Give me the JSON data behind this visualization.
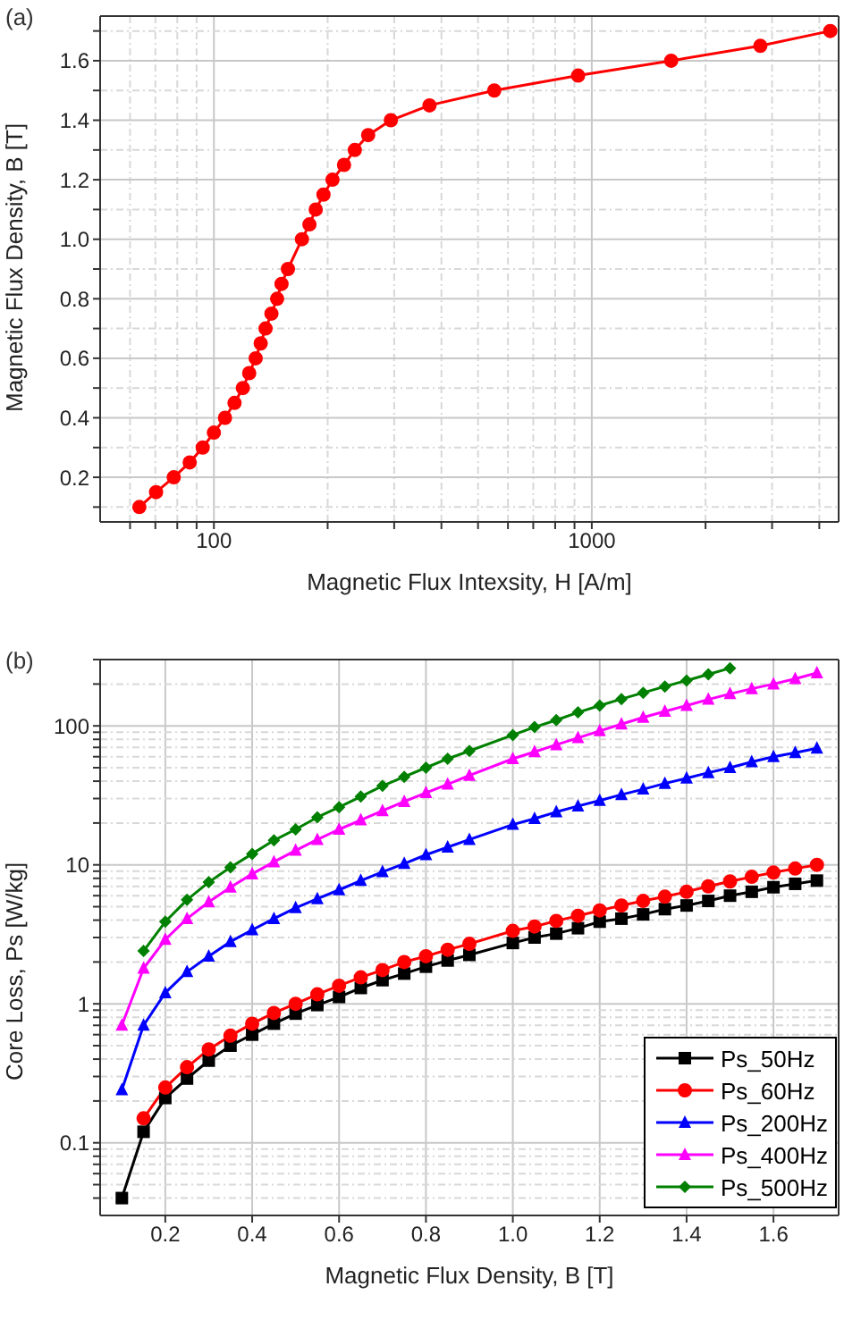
{
  "chart_data": [
    {
      "type": "line",
      "annotations": [
        "(a)"
      ],
      "xlabel": "Magnetic Flux Intexsity, H [A/m]",
      "ylabel": "Magnetic Flux Density, B [T]",
      "log": "x",
      "xlim": [
        50,
        4500
      ],
      "xticks": [
        {
          "value": 60,
          "label": null
        },
        {
          "value": 70,
          "label": null
        },
        {
          "value": 80,
          "label": null
        },
        {
          "value": 90,
          "label": null
        },
        100,
        {
          "value": 200,
          "label": null
        },
        {
          "value": 300,
          "label": null
        },
        {
          "value": 400,
          "label": null
        },
        {
          "value": 500,
          "label": null
        },
        {
          "value": 600,
          "label": null
        },
        {
          "value": 700,
          "label": null
        },
        {
          "value": 800,
          "label": null
        },
        {
          "value": 900,
          "label": null
        },
        1000,
        {
          "value": 2000,
          "label": null
        },
        {
          "value": 3000,
          "label": null
        },
        {
          "value": 4000,
          "label": null
        }
      ],
      "ylim": [
        0.05,
        1.75
      ],
      "yticks": [
        {
          "value": 0.1,
          "label": null
        },
        0.2,
        {
          "value": 0.3,
          "label": null
        },
        0.4,
        {
          "value": 0.5,
          "label": null
        },
        0.6,
        {
          "value": 0.7,
          "label": null
        },
        0.8,
        {
          "value": 0.9,
          "label": null
        },
        {
          "value": 1,
          "label": "1.0"
        },
        {
          "value": 1.1,
          "label": null
        },
        1.2,
        {
          "value": 1.3,
          "label": null
        },
        1.4,
        {
          "value": 1.5,
          "label": null
        },
        1.6,
        {
          "value": 1.7,
          "label": null
        }
      ],
      "grid": true,
      "marker": "circle",
      "series": [
        {
          "color": "#ff0000",
          "x": [
            63.5,
            70.3,
            78.3,
            86.3,
            93.4,
            100,
            107,
            113.4,
            119.3,
            124,
            129,
            133,
            137,
            142,
            147,
            151,
            157,
            171,
            179,
            186,
            195,
            206,
            221,
            236,
            256,
            294,
            372,
            552,
            920,
            1622,
            2793,
            4276
          ],
          "values": [
            0.1,
            0.15,
            0.2,
            0.25,
            0.3,
            0.35,
            0.4,
            0.45,
            0.5,
            0.55,
            0.6,
            0.65,
            0.7,
            0.75,
            0.8,
            0.85,
            0.9,
            1.0,
            1.05,
            1.1,
            1.15,
            1.2,
            1.25,
            1.3,
            1.35,
            1.4,
            1.45,
            1.5,
            1.55,
            1.6,
            1.65,
            1.7
          ]
        }
      ]
    },
    {
      "type": "line",
      "annotations": [
        "(b)"
      ],
      "xlabel": "Magnetic Flux Density, B [T]",
      "ylabel": "Core Loss, Ps [W/kg]",
      "log": "y",
      "xlim": [
        0.05,
        1.75
      ],
      "xticks": [
        0.2,
        0.4,
        0.6,
        0.8,
        {
          "value": 1,
          "label": "1.0"
        },
        1.2,
        1.4,
        1.6
      ],
      "ylim": [
        0.03,
        300
      ],
      "yticks": [
        {
          "value": 0.04,
          "label": null
        },
        {
          "value": 0.05,
          "label": null
        },
        {
          "value": 0.06,
          "label": null
        },
        {
          "value": 0.07,
          "label": null
        },
        {
          "value": 0.08,
          "label": null
        },
        {
          "value": 0.09,
          "label": null
        },
        0.1,
        {
          "value": 0.2,
          "label": null
        },
        {
          "value": 0.3,
          "label": null
        },
        {
          "value": 0.4,
          "label": null
        },
        {
          "value": 0.5,
          "label": null
        },
        {
          "value": 0.6,
          "label": null
        },
        {
          "value": 0.7,
          "label": null
        },
        {
          "value": 0.8,
          "label": null
        },
        {
          "value": 0.9,
          "label": null
        },
        1,
        {
          "value": 2,
          "label": null
        },
        {
          "value": 3,
          "label": null
        },
        {
          "value": 4,
          "label": null
        },
        {
          "value": 5,
          "label": null
        },
        {
          "value": 6,
          "label": null
        },
        {
          "value": 7,
          "label": null
        },
        {
          "value": 8,
          "label": null
        },
        {
          "value": 9,
          "label": null
        },
        10,
        {
          "value": 20,
          "label": null
        },
        {
          "value": 30,
          "label": null
        },
        {
          "value": 40,
          "label": null
        },
        {
          "value": 50,
          "label": null
        },
        {
          "value": 60,
          "label": null
        },
        {
          "value": 70,
          "label": null
        },
        {
          "value": 80,
          "label": null
        },
        {
          "value": 90,
          "label": null
        },
        100,
        {
          "value": 200,
          "label": null
        },
        {
          "value": 300,
          "label": null
        }
      ],
      "grid": true,
      "legend": "bottom right",
      "series": [
        {
          "name": "Ps_50Hz",
          "color": "#000000",
          "marker": "square",
          "x": [
            0.1,
            0.15,
            0.2,
            0.25,
            0.3,
            0.35,
            0.4,
            0.45,
            0.5,
            0.55,
            0.6,
            0.65,
            0.7,
            0.75,
            0.8,
            0.85,
            0.9,
            1.0,
            1.05,
            1.1,
            1.15,
            1.2,
            1.25,
            1.3,
            1.35,
            1.4,
            1.45,
            1.5,
            1.55,
            1.6,
            1.65,
            1.7
          ],
          "values": [
            0.04,
            0.12,
            0.21,
            0.29,
            0.39,
            0.5,
            0.6,
            0.72,
            0.85,
            0.98,
            1.12,
            1.3,
            1.48,
            1.65,
            1.85,
            2.05,
            2.25,
            2.74,
            3.0,
            3.2,
            3.5,
            3.9,
            4.1,
            4.4,
            4.8,
            5.1,
            5.5,
            6.0,
            6.4,
            6.9,
            7.3,
            7.7
          ]
        },
        {
          "name": "Ps_60Hz",
          "color": "#ff0000",
          "marker": "circle",
          "x": [
            0.15,
            0.2,
            0.25,
            0.3,
            0.35,
            0.4,
            0.45,
            0.5,
            0.55,
            0.6,
            0.65,
            0.7,
            0.75,
            0.8,
            0.85,
            0.9,
            1.0,
            1.05,
            1.1,
            1.15,
            1.2,
            1.25,
            1.3,
            1.35,
            1.4,
            1.45,
            1.5,
            1.55,
            1.6,
            1.65,
            1.7
          ],
          "values": [
            0.15,
            0.25,
            0.35,
            0.47,
            0.59,
            0.72,
            0.86,
            1.0,
            1.17,
            1.35,
            1.55,
            1.75,
            2.0,
            2.2,
            2.45,
            2.7,
            3.35,
            3.6,
            3.95,
            4.3,
            4.7,
            5.1,
            5.5,
            5.9,
            6.4,
            7.0,
            7.6,
            8.2,
            8.8,
            9.4,
            10
          ]
        },
        {
          "name": "Ps_200Hz",
          "color": "#0000ff",
          "marker": "triangle",
          "x": [
            0.1,
            0.15,
            0.2,
            0.25,
            0.3,
            0.35,
            0.4,
            0.45,
            0.5,
            0.55,
            0.6,
            0.65,
            0.7,
            0.75,
            0.8,
            0.85,
            0.9,
            1.0,
            1.05,
            1.1,
            1.15,
            1.2,
            1.25,
            1.3,
            1.35,
            1.4,
            1.45,
            1.5,
            1.55,
            1.6,
            1.65,
            1.7
          ],
          "values": [
            0.24,
            0.7,
            1.2,
            1.7,
            2.2,
            2.8,
            3.4,
            4.1,
            4.9,
            5.7,
            6.6,
            7.7,
            8.9,
            10.2,
            11.8,
            13.4,
            15.2,
            19.5,
            21.5,
            24,
            26.5,
            29,
            32,
            35,
            38.5,
            42,
            46,
            50,
            55,
            60,
            64,
            69
          ]
        },
        {
          "name": "Ps_400Hz",
          "color": "#ff00ff",
          "marker": "triangle",
          "x": [
            0.1,
            0.15,
            0.2,
            0.25,
            0.3,
            0.35,
            0.4,
            0.45,
            0.5,
            0.55,
            0.6,
            0.65,
            0.7,
            0.75,
            0.8,
            0.85,
            0.9,
            1.0,
            1.05,
            1.1,
            1.15,
            1.2,
            1.25,
            1.3,
            1.35,
            1.4,
            1.45,
            1.5,
            1.55,
            1.6,
            1.65,
            1.7
          ],
          "values": [
            0.7,
            1.8,
            2.9,
            4.1,
            5.4,
            6.9,
            8.6,
            10.5,
            12.7,
            15.2,
            18,
            21,
            24.5,
            28.5,
            33,
            38,
            44,
            58,
            65,
            73,
            82,
            92,
            103,
            115,
            127,
            140,
            155,
            170,
            185,
            200,
            218,
            240
          ]
        },
        {
          "name": "Ps_500Hz",
          "color": "#008000",
          "marker": "diamond",
          "x": [
            0.15,
            0.2,
            0.25,
            0.3,
            0.35,
            0.4,
            0.45,
            0.5,
            0.55,
            0.6,
            0.65,
            0.7,
            0.75,
            0.8,
            0.85,
            0.9,
            1.0,
            1.05,
            1.1,
            1.15,
            1.2,
            1.25,
            1.3,
            1.35,
            1.4,
            1.45,
            1.5
          ],
          "values": [
            2.4,
            3.9,
            5.6,
            7.5,
            9.6,
            12,
            15,
            18,
            22,
            26,
            31,
            37,
            43,
            50,
            58,
            66,
            86,
            98,
            110,
            125,
            140,
            156,
            173,
            192,
            212,
            235,
            260
          ]
        }
      ]
    }
  ]
}
